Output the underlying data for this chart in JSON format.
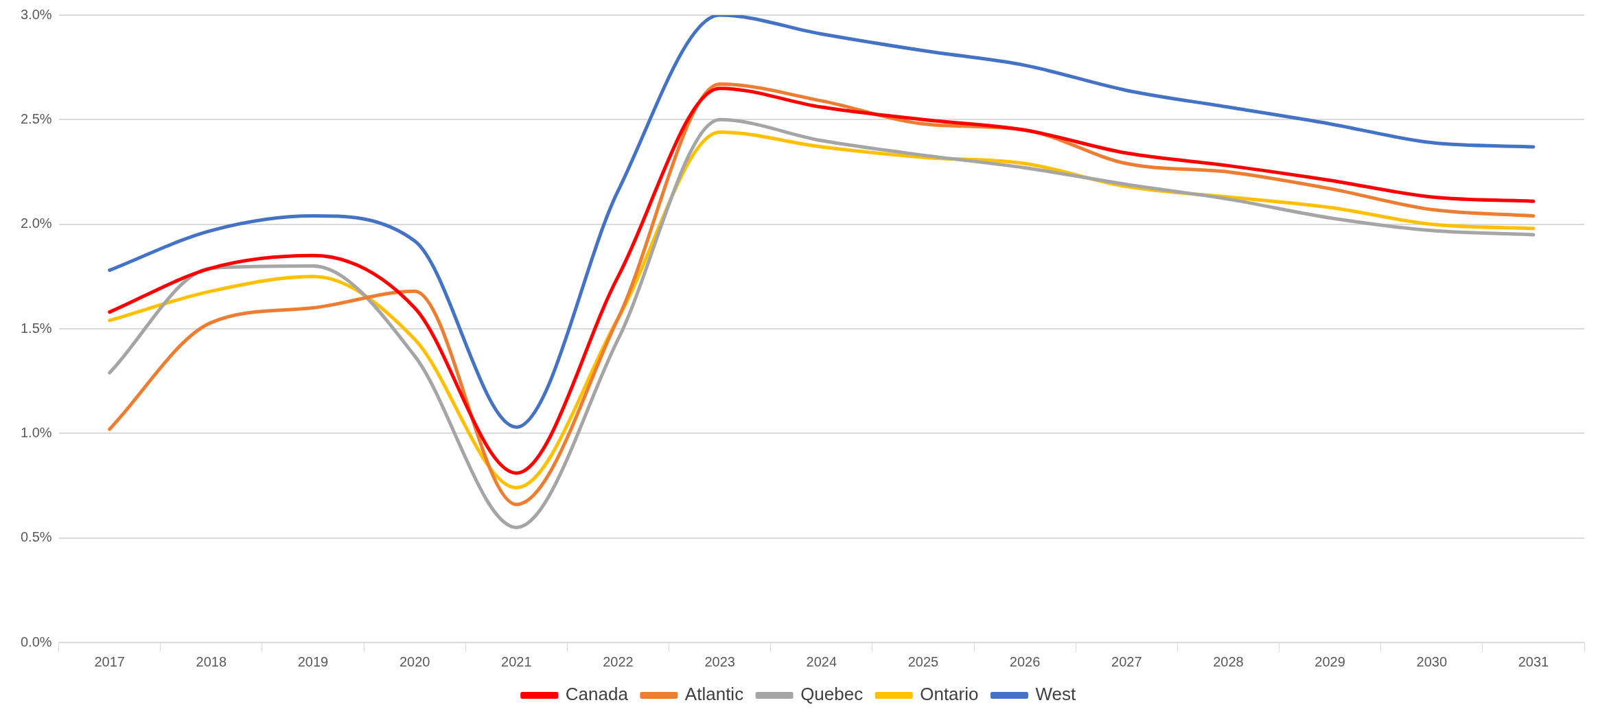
{
  "chart_data": {
    "type": "line",
    "categories": [
      "2017",
      "2018",
      "2019",
      "2020",
      "2021",
      "2022",
      "2023",
      "2024",
      "2025",
      "2026",
      "2027",
      "2028",
      "2029",
      "2030",
      "2031"
    ],
    "series": [
      {
        "name": "Canada",
        "color": "#ff0000",
        "values": [
          1.58,
          1.79,
          1.85,
          1.6,
          0.81,
          1.75,
          2.65,
          2.56,
          2.5,
          2.45,
          2.34,
          2.28,
          2.21,
          2.13,
          2.11
        ]
      },
      {
        "name": "Atlantic",
        "color": "#ed7d31",
        "values": [
          1.02,
          1.53,
          1.6,
          1.68,
          0.66,
          1.55,
          2.67,
          2.59,
          2.48,
          2.45,
          2.29,
          2.25,
          2.17,
          2.07,
          2.04
        ]
      },
      {
        "name": "Quebec",
        "color": "#a5a5a5",
        "values": [
          1.29,
          1.79,
          1.8,
          1.37,
          0.55,
          1.45,
          2.5,
          2.4,
          2.33,
          2.27,
          2.19,
          2.12,
          2.03,
          1.97,
          1.95
        ]
      },
      {
        "name": "Ontario",
        "color": "#ffc000",
        "values": [
          1.54,
          1.68,
          1.75,
          1.45,
          0.74,
          1.55,
          2.44,
          2.37,
          2.32,
          2.29,
          2.18,
          2.13,
          2.08,
          2.0,
          1.98
        ]
      },
      {
        "name": "West",
        "color": "#4472c4",
        "values": [
          1.78,
          1.97,
          2.04,
          1.92,
          1.03,
          2.16,
          3.0,
          2.91,
          2.83,
          2.76,
          2.64,
          2.56,
          2.48,
          2.39,
          2.37
        ]
      }
    ],
    "ylim": [
      0,
      3
    ],
    "yticks": [
      {
        "value": 0,
        "label": "0.0%"
      },
      {
        "value": 0.5,
        "label": "0.5%"
      },
      {
        "value": 1,
        "label": "1.0%"
      },
      {
        "value": 1.5,
        "label": "1.5%"
      },
      {
        "value": 2,
        "label": "2.0%"
      },
      {
        "value": 2.5,
        "label": "2.5%"
      },
      {
        "value": 3,
        "label": "3.0%"
      }
    ],
    "grid": "y",
    "legend": "bottom",
    "marker": "none",
    "line_style": "solid"
  }
}
